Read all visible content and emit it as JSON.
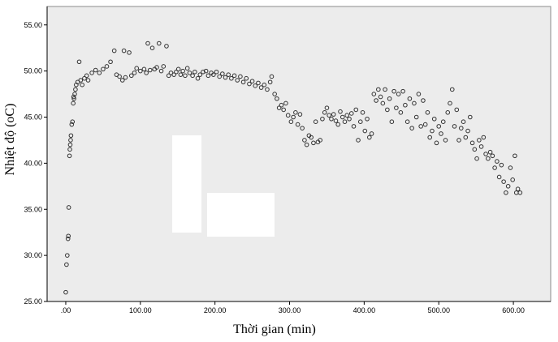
{
  "chart_data": {
    "type": "scatter",
    "xlabel": "Thời gian (min)",
    "ylabel": "Nhiệt độ (oC)",
    "xlim": [
      -25,
      650
    ],
    "ylim": [
      25,
      57
    ],
    "x_ticks": [
      ".00",
      "100.00",
      "200.00",
      "300.00",
      "400.00",
      "500.00",
      "600.00"
    ],
    "y_ticks": [
      "25.00",
      "30.00",
      "35.00",
      "40.00",
      "45.00",
      "50.00",
      "55.00"
    ],
    "grid": false,
    "background": "#ececec",
    "marker_color": "#333333",
    "series": [
      {
        "points": [
          [
            0,
            26.0
          ],
          [
            1,
            29.0
          ],
          [
            2,
            30.0
          ],
          [
            3,
            31.8
          ],
          [
            3.5,
            32.1
          ],
          [
            4,
            35.2
          ],
          [
            5,
            40.8
          ],
          [
            5.5,
            41.5
          ],
          [
            6,
            42.0
          ],
          [
            6.5,
            42.5
          ],
          [
            7,
            43.0
          ],
          [
            8,
            44.2
          ],
          [
            9,
            44.5
          ],
          [
            10,
            46.5
          ],
          [
            10.5,
            47.2
          ],
          [
            11,
            47.0
          ],
          [
            12,
            47.5
          ],
          [
            13,
            48.0
          ],
          [
            14,
            48.5
          ],
          [
            16,
            48.8
          ],
          [
            18,
            51.0
          ],
          [
            20,
            49.0
          ],
          [
            22,
            48.5
          ],
          [
            25,
            49.2
          ],
          [
            28,
            49.5
          ],
          [
            30,
            49.0
          ],
          [
            35,
            49.8
          ],
          [
            40,
            50.1
          ],
          [
            45,
            49.8
          ],
          [
            50,
            50.2
          ],
          [
            55,
            50.5
          ],
          [
            60,
            51.0
          ],
          [
            65,
            52.2
          ],
          [
            68,
            49.6
          ],
          [
            72,
            49.4
          ],
          [
            76,
            49.0
          ],
          [
            78,
            52.2
          ],
          [
            80,
            49.3
          ],
          [
            85,
            52.0
          ],
          [
            88,
            49.5
          ],
          [
            92,
            49.8
          ],
          [
            95,
            50.3
          ],
          [
            100,
            50.0
          ],
          [
            105,
            50.2
          ],
          [
            108,
            49.8
          ],
          [
            110,
            53.0
          ],
          [
            113,
            50.1
          ],
          [
            116,
            52.5
          ],
          [
            119,
            50.2
          ],
          [
            122,
            50.4
          ],
          [
            125,
            53.0
          ],
          [
            128,
            50.0
          ],
          [
            131,
            50.5
          ],
          [
            135,
            52.7
          ],
          [
            138,
            49.5
          ],
          [
            141,
            49.8
          ],
          [
            145,
            49.6
          ],
          [
            148,
            49.9
          ],
          [
            151,
            50.2
          ],
          [
            154,
            49.6
          ],
          [
            157,
            50.0
          ],
          [
            160,
            49.5
          ],
          [
            163,
            50.3
          ],
          [
            166,
            49.8
          ],
          [
            170,
            49.5
          ],
          [
            173,
            49.9
          ],
          [
            177,
            49.2
          ],
          [
            180,
            49.6
          ],
          [
            184,
            49.9
          ],
          [
            188,
            50.0
          ],
          [
            191,
            49.5
          ],
          [
            195,
            49.8
          ],
          [
            198,
            49.6
          ],
          [
            202,
            49.9
          ],
          [
            206,
            49.4
          ],
          [
            210,
            49.7
          ],
          [
            214,
            49.3
          ],
          [
            218,
            49.6
          ],
          [
            222,
            49.2
          ],
          [
            226,
            49.5
          ],
          [
            230,
            49.0
          ],
          [
            234,
            49.4
          ],
          [
            238,
            48.8
          ],
          [
            242,
            49.2
          ],
          [
            246,
            48.6
          ],
          [
            250,
            48.9
          ],
          [
            254,
            48.4
          ],
          [
            258,
            48.7
          ],
          [
            262,
            48.2
          ],
          [
            266,
            48.5
          ],
          [
            270,
            48.0
          ],
          [
            274,
            48.8
          ],
          [
            276,
            49.4
          ],
          [
            280,
            47.5
          ],
          [
            283,
            47.0
          ],
          [
            286,
            46.0
          ],
          [
            289,
            46.3
          ],
          [
            292,
            45.8
          ],
          [
            295,
            46.5
          ],
          [
            298,
            45.2
          ],
          [
            302,
            44.5
          ],
          [
            305,
            45.0
          ],
          [
            308,
            45.5
          ],
          [
            311,
            44.2
          ],
          [
            314,
            45.3
          ],
          [
            317,
            43.8
          ],
          [
            320,
            42.5
          ],
          [
            323,
            42.0
          ],
          [
            326,
            43.0
          ],
          [
            329,
            42.8
          ],
          [
            332,
            42.2
          ],
          [
            335,
            44.5
          ],
          [
            338,
            42.3
          ],
          [
            341,
            42.5
          ],
          [
            344,
            44.8
          ],
          [
            347,
            45.5
          ],
          [
            350,
            46.0
          ],
          [
            353,
            45.2
          ],
          [
            356,
            44.8
          ],
          [
            359,
            45.3
          ],
          [
            362,
            44.6
          ],
          [
            365,
            44.2
          ],
          [
            368,
            45.6
          ],
          [
            371,
            45.0
          ],
          [
            374,
            44.5
          ],
          [
            377,
            45.2
          ],
          [
            380,
            44.8
          ],
          [
            383,
            45.4
          ],
          [
            386,
            44.0
          ],
          [
            389,
            45.8
          ],
          [
            392,
            42.5
          ],
          [
            395,
            44.5
          ],
          [
            398,
            45.5
          ],
          [
            401,
            43.5
          ],
          [
            404,
            44.8
          ],
          [
            407,
            42.8
          ],
          [
            410,
            43.2
          ],
          [
            413,
            47.5
          ],
          [
            416,
            46.8
          ],
          [
            419,
            48.0
          ],
          [
            422,
            47.2
          ],
          [
            425,
            46.5
          ],
          [
            428,
            48.0
          ],
          [
            431,
            45.8
          ],
          [
            434,
            47.0
          ],
          [
            437,
            44.5
          ],
          [
            440,
            47.8
          ],
          [
            443,
            46.0
          ],
          [
            446,
            47.5
          ],
          [
            449,
            45.5
          ],
          [
            452,
            47.8
          ],
          [
            455,
            46.3
          ],
          [
            458,
            44.5
          ],
          [
            461,
            47.0
          ],
          [
            464,
            43.8
          ],
          [
            467,
            46.5
          ],
          [
            470,
            45.0
          ],
          [
            473,
            47.5
          ],
          [
            476,
            44.0
          ],
          [
            479,
            46.8
          ],
          [
            482,
            44.2
          ],
          [
            485,
            45.5
          ],
          [
            488,
            42.8
          ],
          [
            491,
            43.5
          ],
          [
            494,
            44.8
          ],
          [
            497,
            42.2
          ],
          [
            500,
            44.0
          ],
          [
            503,
            43.2
          ],
          [
            506,
            44.5
          ],
          [
            509,
            42.5
          ],
          [
            512,
            45.5
          ],
          [
            515,
            46.5
          ],
          [
            518,
            48.0
          ],
          [
            521,
            44.0
          ],
          [
            524,
            45.8
          ],
          [
            527,
            42.5
          ],
          [
            530,
            43.8
          ],
          [
            533,
            44.5
          ],
          [
            536,
            42.8
          ],
          [
            539,
            43.5
          ],
          [
            542,
            45.0
          ],
          [
            545,
            42.2
          ],
          [
            548,
            41.5
          ],
          [
            551,
            40.5
          ],
          [
            554,
            42.5
          ],
          [
            557,
            41.8
          ],
          [
            560,
            42.8
          ],
          [
            563,
            41.0
          ],
          [
            566,
            40.5
          ],
          [
            569,
            41.2
          ],
          [
            572,
            40.8
          ],
          [
            575,
            39.5
          ],
          [
            578,
            40.2
          ],
          [
            581,
            38.5
          ],
          [
            584,
            39.8
          ],
          [
            587,
            38.0
          ],
          [
            590,
            36.8
          ],
          [
            593,
            37.5
          ],
          [
            596,
            39.5
          ],
          [
            599,
            38.2
          ],
          [
            602,
            40.8
          ],
          [
            604,
            36.8
          ],
          [
            606,
            37.2
          ],
          [
            609,
            36.8
          ]
        ]
      }
    ]
  }
}
